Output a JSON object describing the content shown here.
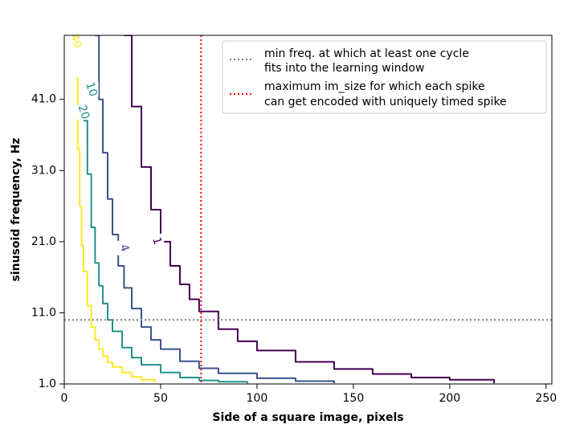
{
  "chart_data": {
    "type": "line",
    "title": "",
    "xlabel": "Side of a square image, pixels",
    "ylabel": "sinusoid frequency, Hz",
    "xlim": [
      0,
      253
    ],
    "ylim": [
      1,
      50
    ],
    "xticks": [
      0,
      50,
      100,
      150,
      200,
      250
    ],
    "xtick_labels": [
      "0",
      "50",
      "100",
      "150",
      "200",
      "250"
    ],
    "yticks": [
      1,
      11,
      21,
      31,
      41
    ],
    "ytick_labels": [
      "1.0",
      "11.0",
      "21.0",
      "31.0",
      "41.0"
    ],
    "grid": false,
    "legend_position": "top-right",
    "series": [
      {
        "name": "",
        "label": "1",
        "color": "#440154",
        "x": [
          31,
          35,
          40,
          45,
          50,
          55,
          60,
          65,
          70,
          80,
          90,
          100,
          120,
          140,
          160,
          180,
          200,
          223
        ],
        "y": [
          50,
          40,
          31.5,
          25.5,
          21,
          17.6,
          15,
          12.9,
          11.2,
          8.7,
          7,
          5.7,
          4.1,
          3.1,
          2.4,
          1.9,
          1.6,
          1.1
        ]
      },
      {
        "name": "",
        "label": "4",
        "color": "#3b528b",
        "x": [
          16,
          18,
          20,
          22.5,
          25,
          28,
          31,
          35,
          40,
          45,
          50,
          60,
          70,
          80,
          100,
          120,
          140
        ],
        "y": [
          50,
          41,
          33.5,
          27,
          22,
          17.6,
          14.5,
          11.6,
          9,
          7.2,
          5.9,
          4.2,
          3.2,
          2.5,
          1.8,
          1.4,
          1.1
        ]
      },
      {
        "name": "",
        "label": "10",
        "color": "#21918c",
        "x": [
          10,
          12,
          14,
          16,
          18,
          20,
          22.5,
          25,
          30,
          35,
          40,
          50,
          60,
          70,
          80,
          95
        ],
        "y": [
          38,
          30.5,
          23,
          18,
          14.8,
          12.3,
          10,
          8.4,
          6.1,
          4.7,
          3.7,
          2.6,
          1.9,
          1.5,
          1.3,
          1.1
        ]
      },
      {
        "name": "",
        "label": "20",
        "color": "#fde725",
        "x": [
          6,
          7,
          8,
          9,
          10,
          12,
          14,
          16,
          18,
          20,
          22.5,
          25,
          30,
          35,
          40,
          47
        ],
        "y": [
          44,
          34,
          26,
          20.5,
          16.8,
          12,
          9,
          7.2,
          5.9,
          4.9,
          4,
          3.4,
          2.6,
          2,
          1.6,
          1.15
        ]
      }
    ],
    "reference_lines": [
      {
        "orientation": "horizontal",
        "value": 10,
        "color": "#808080",
        "style": "dotted",
        "legend_line1": "min freq. at which at least one cycle",
        "legend_line2": "fits into the learning window"
      },
      {
        "orientation": "vertical",
        "value": 71,
        "color": "#ff0000",
        "style": "dotted",
        "legend_line1": "maximum im_size for which each spike",
        "legend_line2": "can get encoded with uniquely timed spike"
      }
    ],
    "contour_labels": [
      {
        "text": "1",
        "x": 48,
        "y": 21.1,
        "color": "#440154"
      },
      {
        "text": "4",
        "x": 31,
        "y": 20.1,
        "color": "#3b528b"
      },
      {
        "text": "10",
        "x": 14,
        "y": 42.4,
        "color": "#21918c"
      },
      {
        "text": "20",
        "x": 10,
        "y": 39.2,
        "color": "#21918c"
      },
      {
        "text": "40",
        "x": 6,
        "y": 49.2,
        "color": "#fde725"
      }
    ]
  }
}
